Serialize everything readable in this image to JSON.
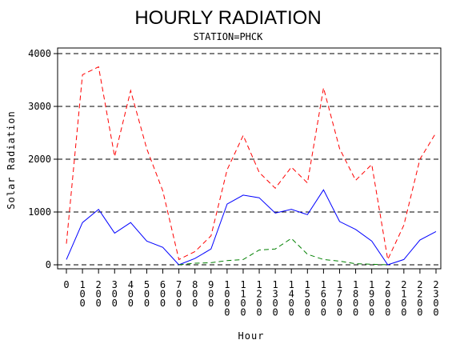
{
  "chart_data": {
    "type": "line",
    "title": "HOURLY RADIATION",
    "subtitle": "STATION=PHCK",
    "xlabel": "Hour",
    "ylabel": "Solar Radiation",
    "x": [
      0,
      100,
      200,
      300,
      400,
      500,
      600,
      700,
      800,
      900,
      1000,
      1100,
      1200,
      1300,
      1400,
      1500,
      1600,
      1700,
      1800,
      1900,
      2000,
      2100,
      2200,
      2300
    ],
    "x_tick_labels": [
      "0",
      "100",
      "200",
      "300",
      "400",
      "500",
      "600",
      "700",
      "800",
      "900",
      "1000",
      "1100",
      "1200",
      "1300",
      "1400",
      "1500",
      "1600",
      "1700",
      "1800",
      "1900",
      "2000",
      "2100",
      "2200",
      "2300"
    ],
    "ylim": [
      0,
      4100
    ],
    "y_ticks": [
      0,
      1000,
      2000,
      3000,
      4000
    ],
    "y_tick_labels": [
      "0",
      "1000",
      "2000",
      "3000",
      "4000"
    ],
    "gridlines": "horizontal dashed at major ticks",
    "series": [
      {
        "color": "#ff0000",
        "dash": "dashed",
        "values": [
          400,
          3600,
          3750,
          2050,
          3300,
          2200,
          1400,
          100,
          250,
          550,
          1800,
          2450,
          1750,
          1450,
          1850,
          1550,
          3350,
          2200,
          1600,
          1900,
          100,
          750,
          2000,
          2500
        ]
      },
      {
        "color": "#0000ff",
        "dash": "solid",
        "values": [
          100,
          800,
          1050,
          600,
          800,
          450,
          330,
          0,
          120,
          300,
          1150,
          1320,
          1270,
          980,
          1050,
          950,
          1420,
          820,
          670,
          450,
          0,
          100,
          470,
          630
        ]
      },
      {
        "color": "#008000",
        "dash": "dashed",
        "x_start_index": 7,
        "values": [
          null,
          null,
          null,
          null,
          null,
          null,
          null,
          0,
          30,
          40,
          80,
          100,
          280,
          300,
          500,
          200,
          100,
          70,
          20,
          10,
          0,
          null,
          null,
          null
        ]
      }
    ]
  }
}
